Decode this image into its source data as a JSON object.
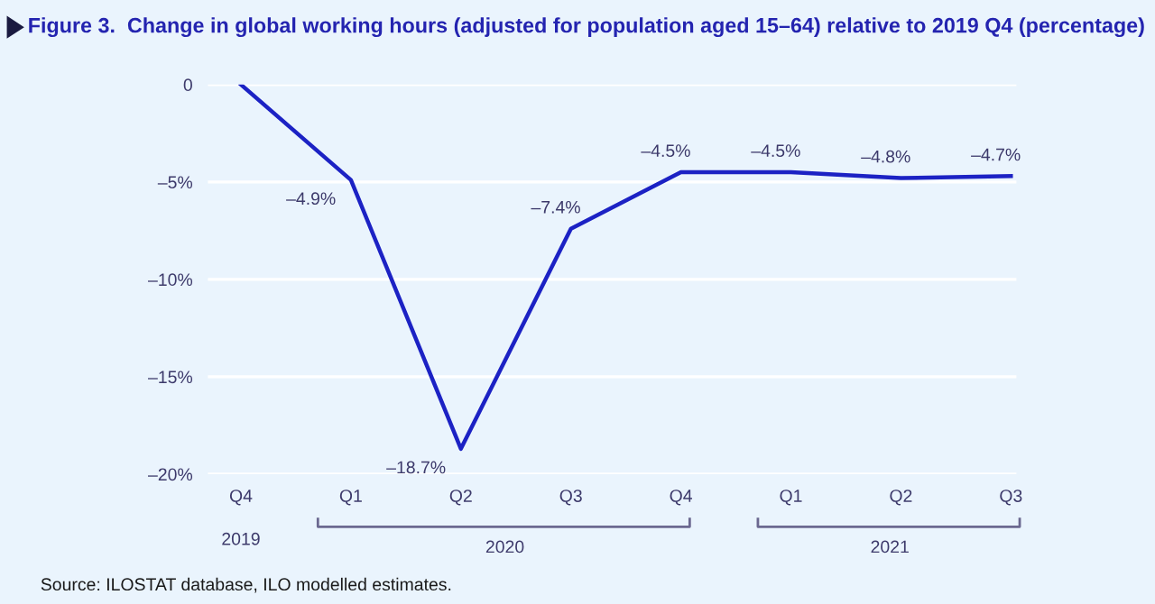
{
  "chart_data": {
    "type": "line",
    "title": "Figure 3.  Change in global working hours (adjusted for population aged 15–64) relative to 2019 Q4 (percentage)",
    "categories": [
      "Q4",
      "Q1",
      "Q2",
      "Q3",
      "Q4",
      "Q1",
      "Q2",
      "Q3"
    ],
    "series": [
      {
        "color": "#1c22c4",
        "values": [
          0,
          -4.9,
          -18.7,
          -7.4,
          -4.5,
          -4.5,
          -4.8,
          -4.7
        ],
        "value_labels": [
          null,
          "–4.9%",
          "–18.7%",
          "–7.4%",
          "–4.5%",
          "–4.5%",
          "–4.8%",
          "–4.7%"
        ]
      }
    ],
    "ylim": [
      -20,
      0
    ],
    "yticks": [
      {
        "value": -20,
        "label": "–20%"
      },
      {
        "value": -15,
        "label": "–15%"
      },
      {
        "value": -10,
        "label": "–10%"
      },
      {
        "value": -5,
        "label": "–5%"
      },
      0
    ],
    "grid": "y",
    "marker": "none",
    "line_style": "solid",
    "annotations": [
      "2019",
      "2020",
      "2021",
      "Source: ILOSTAT database, ILO modelled estimates."
    ]
  }
}
